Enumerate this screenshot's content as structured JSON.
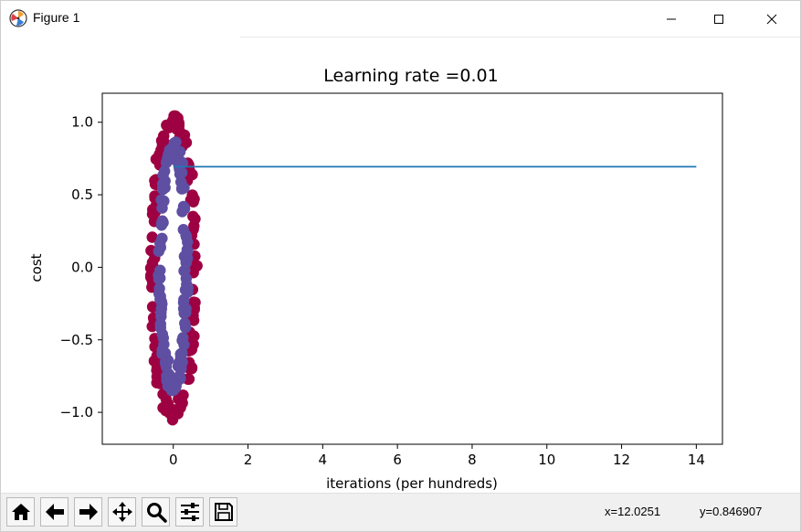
{
  "window": {
    "title": "Figure 1",
    "controls": {
      "minimize": "minimize-icon",
      "maximize": "maximize-icon",
      "close": "close-icon"
    }
  },
  "toolbar": {
    "buttons": [
      "home-icon",
      "back-arrow-icon",
      "forward-arrow-icon",
      "pan-icon",
      "zoom-icon",
      "configure-subplots-icon",
      "save-icon"
    ],
    "x_readout": "x=12.0251",
    "y_readout": "y=0.846907"
  },
  "chart_data": {
    "type": "line",
    "title": "Learning rate =0.01",
    "xlabel": "iterations (per hundreds)",
    "ylabel": "cost",
    "xlim": [
      -1.9,
      14.7
    ],
    "ylim": [
      -1.22,
      1.2
    ],
    "xticks": [
      0,
      2,
      4,
      6,
      8,
      10,
      12,
      14
    ],
    "xtick_labels": [
      "0",
      "2",
      "4",
      "6",
      "8",
      "10",
      "12",
      "14"
    ],
    "yticks": [
      1.0,
      0.5,
      0.0,
      -0.5,
      -1.0
    ],
    "ytick_labels": [
      "1.0",
      "0.5",
      "0.0",
      "−0.5",
      "−1.0"
    ],
    "grid": false,
    "series": [
      {
        "x": [
          0,
          1,
          2,
          3,
          4,
          5,
          6,
          7,
          8,
          9,
          10,
          11,
          12,
          13,
          14
        ],
        "y": [
          0.693,
          0.693,
          0.693,
          0.693,
          0.693,
          0.693,
          0.693,
          0.693,
          0.693,
          0.693,
          0.693,
          0.693,
          0.693,
          0.693,
          0.693
        ],
        "color": "#1f77b4"
      }
    ],
    "scatter_overlay": {
      "outer_ring": {
        "color": "#9e0142",
        "x_radius": 1.0,
        "y_radius": 1.0,
        "count": 150
      },
      "inner_ring": {
        "color": "#5e4fa2",
        "x_radius": 0.6,
        "y_radius": 0.82,
        "count": 150
      }
    }
  }
}
